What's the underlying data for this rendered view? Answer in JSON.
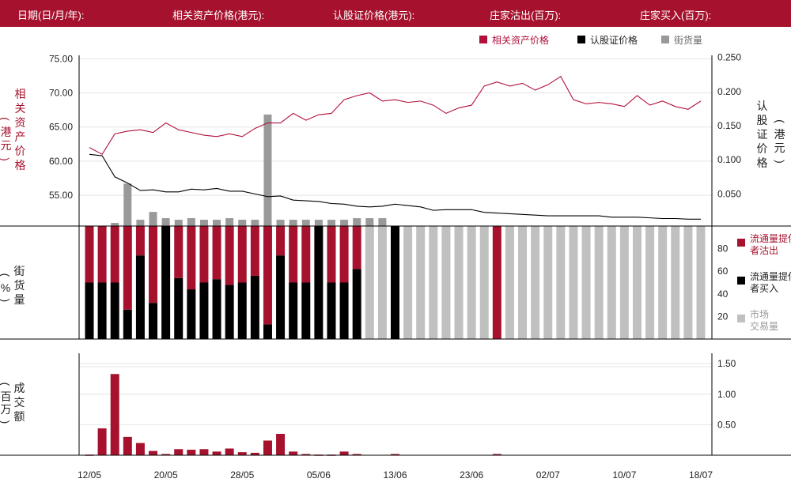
{
  "header": {
    "date_label": "日期(日/月/年):",
    "underlying_label": "相关资产价格(港元):",
    "warrant_label": "认股证价格(港元):",
    "mm_sell_label": "庄家沽出(百万):",
    "mm_buy_label": "庄家买入(百万):"
  },
  "legend_top": {
    "underlying": "相关资产价格",
    "warrant": "认股证价格",
    "street": "街货量"
  },
  "legend_mid": {
    "lp_sell": "流通量提供者沽出",
    "lp_buy": "流通量提供者买入",
    "market": "市场交易量"
  },
  "axis_titles": {
    "left_top_a": "相关资产价格",
    "left_top_b": "港元",
    "right_top_a": "认股证价格",
    "right_top_b": "港元",
    "mid_a": "街货量",
    "mid_b": "%",
    "bottom_a": "成交额",
    "bottom_b": "百万"
  },
  "colors": {
    "brand": "#a6122d",
    "underlying": "#b0103a",
    "warrant": "#000000",
    "street": "#999999",
    "market": "#c0c0c0",
    "grid": "#e4e4e4"
  },
  "chart_data": {
    "type": "line",
    "x_tick_labels": [
      "12/05",
      "20/05",
      "28/05",
      "05/06",
      "13/06",
      "23/06",
      "02/07",
      "10/07",
      "18/07"
    ],
    "x_tick_index": [
      0,
      6,
      12,
      18,
      24,
      30,
      36,
      42,
      48
    ],
    "price_panel": {
      "left_ylim": [
        50.5,
        75.5
      ],
      "left_ticks": [
        55,
        60,
        65,
        70,
        75
      ],
      "left_tick_labels": [
        "55.00",
        "60.00",
        "65.00",
        "70.00",
        "75.00"
      ],
      "right_ylim": [
        0.003,
        0.253
      ],
      "right_ticks": [
        0.05,
        0.1,
        0.15,
        0.2,
        0.25
      ],
      "right_tick_labels": [
        "0.050",
        "0.100",
        "0.150",
        "0.200",
        "0.250"
      ],
      "underlying": [
        62.0,
        61.0,
        64.0,
        64.4,
        64.6,
        64.2,
        65.6,
        64.6,
        64.2,
        63.8,
        63.6,
        64.0,
        63.6,
        64.8,
        65.6,
        65.6,
        67.0,
        66.0,
        66.8,
        67.0,
        69.0,
        69.6,
        70.0,
        68.8,
        69.0,
        68.6,
        68.8,
        68.2,
        67.0,
        67.8,
        68.2,
        71.0,
        71.6,
        71.0,
        71.4,
        70.4,
        71.2,
        72.4,
        69.0,
        68.4,
        68.6,
        68.4,
        68.0,
        69.6,
        68.2,
        68.8,
        68.0,
        67.6,
        68.8
      ],
      "warrant": [
        0.108,
        0.106,
        0.075,
        0.066,
        0.055,
        0.056,
        0.053,
        0.053,
        0.057,
        0.056,
        0.058,
        0.054,
        0.054,
        0.05,
        0.046,
        0.047,
        0.041,
        0.04,
        0.039,
        0.036,
        0.035,
        0.032,
        0.031,
        0.032,
        0.035,
        0.033,
        0.031,
        0.026,
        0.027,
        0.027,
        0.027,
        0.023,
        0.022,
        0.021,
        0.02,
        0.019,
        0.018,
        0.018,
        0.018,
        0.018,
        0.018,
        0.016,
        0.016,
        0.016,
        0.015,
        0.014,
        0.014,
        0.013,
        0.013
      ],
      "street_pct": [
        0,
        0,
        2,
        27,
        4,
        9,
        5,
        4,
        5,
        4,
        4,
        5,
        4,
        4,
        71,
        4,
        4,
        4,
        4,
        4,
        4,
        5,
        5,
        5,
        0,
        0,
        0,
        0,
        0,
        0,
        0,
        0,
        0,
        0,
        0,
        0,
        0,
        0,
        0,
        0,
        0,
        0,
        0,
        0,
        0,
        0,
        0,
        0,
        0
      ]
    },
    "volume_panel": {
      "ylim": [
        0,
        100
      ],
      "ticks": [
        20,
        40,
        60,
        80
      ],
      "tick_labels": [
        "20",
        "40",
        "60",
        "80"
      ],
      "lp_sell": [
        50,
        50,
        50,
        74,
        26,
        68,
        0,
        46,
        56,
        50,
        47,
        52,
        50,
        44,
        87,
        26,
        50,
        50,
        0,
        50,
        50,
        38,
        0,
        0,
        0,
        0,
        0,
        0,
        0,
        0,
        0,
        0,
        0,
        0,
        0,
        0,
        0,
        0,
        0,
        0,
        0,
        0,
        0,
        0,
        0,
        0,
        0,
        0,
        0
      ],
      "lp_buy": [
        50,
        50,
        50,
        26,
        74,
        32,
        100,
        54,
        44,
        50,
        53,
        48,
        50,
        56,
        13,
        74,
        50,
        50,
        100,
        50,
        50,
        62,
        0,
        0,
        100,
        0,
        0,
        0,
        0,
        0,
        0,
        0,
        0,
        0,
        0,
        0,
        0,
        0,
        0,
        0,
        0,
        0,
        0,
        0,
        0,
        0,
        0,
        0,
        0
      ],
      "market": [
        0,
        0,
        0,
        0,
        0,
        0,
        0,
        0,
        0,
        0,
        0,
        0,
        0,
        0,
        0,
        0,
        0,
        0,
        0,
        0,
        0,
        0,
        100,
        100,
        0,
        100,
        100,
        100,
        100,
        100,
        100,
        100,
        0,
        100,
        100,
        100,
        100,
        100,
        100,
        100,
        100,
        100,
        100,
        100,
        100,
        100,
        100,
        100,
        100
      ],
      "lp_sell_special": [
        0,
        0,
        0,
        0,
        0,
        0,
        0,
        0,
        0,
        0,
        0,
        0,
        0,
        0,
        0,
        0,
        0,
        0,
        0,
        0,
        0,
        0,
        0,
        0,
        0,
        0,
        0,
        0,
        0,
        0,
        0,
        0,
        100,
        0,
        0,
        0,
        0,
        0,
        0,
        0,
        0,
        0,
        0,
        0,
        0,
        0,
        0,
        0,
        0
      ]
    },
    "turnover_panel": {
      "ylim": [
        0,
        1.67
      ],
      "ticks": [
        0.5,
        1.0,
        1.5
      ],
      "tick_labels": [
        "0.50",
        "1.00",
        "1.50"
      ],
      "values": [
        0.01,
        0.44,
        1.33,
        0.3,
        0.2,
        0.07,
        0.02,
        0.1,
        0.09,
        0.1,
        0.06,
        0.11,
        0.05,
        0.04,
        0.24,
        0.35,
        0.06,
        0.02,
        0.01,
        0.01,
        0.06,
        0.02,
        0,
        0,
        0.02,
        0,
        0,
        0,
        0,
        0,
        0,
        0,
        0.02,
        0,
        0,
        0,
        0,
        0,
        0,
        0,
        0,
        0,
        0,
        0,
        0,
        0,
        0,
        0,
        0
      ]
    }
  }
}
